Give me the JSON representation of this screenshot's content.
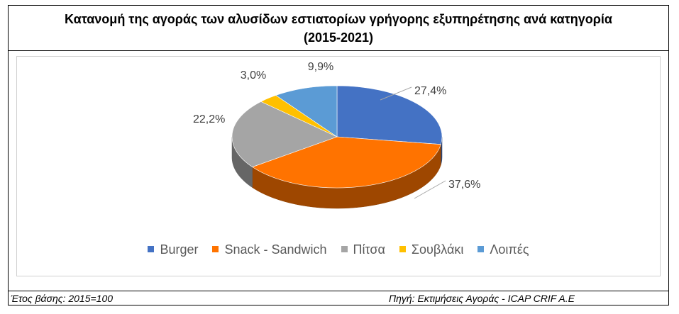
{
  "title": {
    "line1": "Κατανομή της αγοράς των αλυσίδων εστιατορίων γρήγορης εξυπηρέτησης ανά κατηγορία",
    "line2": "(2015-2021)"
  },
  "footer": {
    "base_year": "Έτος βάσης: 2015=100",
    "source": "Πηγή: Εκτιμήσεις Αγοράς - ICAP CRIF A.E"
  },
  "chart_data": {
    "type": "pie",
    "title": "Κατανομή της αγοράς των αλυσίδων εστιατορίων γρήγορης εξυπηρέτησης ανά κατηγορία (2015-2021)",
    "categories": [
      "Burger",
      "Snack - Sandwich",
      "Πίτσα",
      "Σουβλάκι",
      "Λοιπές"
    ],
    "values": [
      27.4,
      37.6,
      22.2,
      3.0,
      9.9
    ],
    "labels": [
      "27,4%",
      "37,6%",
      "22,2%",
      "3,0%",
      "9,9%"
    ],
    "colors": [
      "#4472C4",
      "#FF7300",
      "#A5A5A5",
      "#FFC000",
      "#5B9BD5"
    ],
    "legend_position": "bottom",
    "style": "3d"
  }
}
